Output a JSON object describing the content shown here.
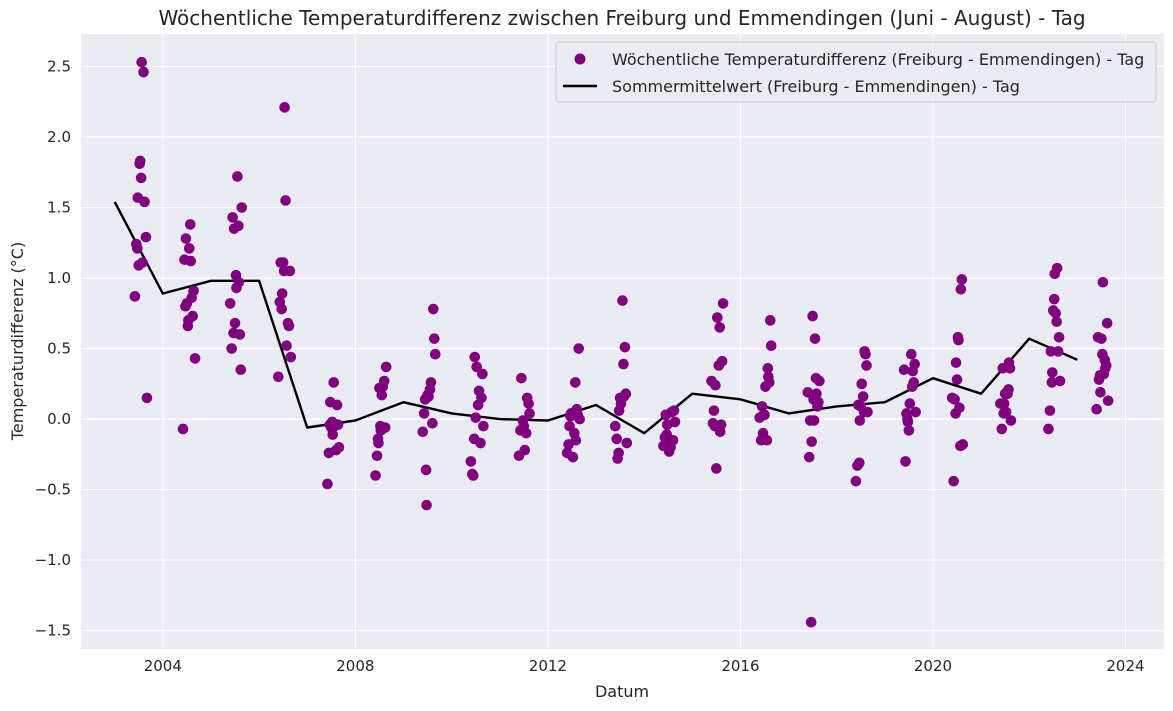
{
  "chart_data": {
    "type": "scatter",
    "title": "Wöchentliche Temperaturdifferenz zwischen Freiburg und Emmendingen (Juni - August) - Tag",
    "xlabel": "Datum",
    "ylabel": "Temperaturdifferenz (°C)",
    "xlim": [
      2002.3,
      2024.8
    ],
    "ylim": [
      -1.63,
      2.73
    ],
    "x_ticks": [
      2004,
      2008,
      2012,
      2016,
      2020,
      2024
    ],
    "y_ticks": [
      -1.5,
      -1.0,
      -0.5,
      0.0,
      0.5,
      1.0,
      1.5,
      2.0,
      2.5
    ],
    "y_tick_labels": [
      "−1.5",
      "−1.0",
      "−0.5",
      "0.0",
      "0.5",
      "1.0",
      "1.5",
      "2.0",
      "2.5"
    ],
    "grid": true,
    "legend_position": "top-right",
    "colors": {
      "background": "#eaeaf2",
      "scatter": "#800080",
      "line": "#000000"
    },
    "series": [
      {
        "name": "Wöchentliche Temperaturdifferenz (Freiburg - Emmendingen) - Tag",
        "type": "scatter",
        "points": [
          [
            2003.42,
            0.87
          ],
          [
            2003.45,
            1.24
          ],
          [
            2003.47,
            1.21
          ],
          [
            2003.48,
            1.57
          ],
          [
            2003.5,
            1.09
          ],
          [
            2003.52,
            1.81
          ],
          [
            2003.53,
            1.83
          ],
          [
            2003.55,
            1.71
          ],
          [
            2003.56,
            2.53
          ],
          [
            2003.58,
            1.11
          ],
          [
            2003.6,
            2.46
          ],
          [
            2003.62,
            1.54
          ],
          [
            2003.65,
            1.29
          ],
          [
            2003.67,
            0.15
          ],
          [
            2004.42,
            -0.07
          ],
          [
            2004.45,
            1.13
          ],
          [
            2004.47,
            0.8
          ],
          [
            2004.48,
            1.28
          ],
          [
            2004.5,
            0.82
          ],
          [
            2004.52,
            0.66
          ],
          [
            2004.53,
            0.7
          ],
          [
            2004.55,
            1.21
          ],
          [
            2004.57,
            1.38
          ],
          [
            2004.58,
            1.12
          ],
          [
            2004.6,
            0.86
          ],
          [
            2004.62,
            0.73
          ],
          [
            2004.64,
            0.91
          ],
          [
            2004.67,
            0.43
          ],
          [
            2005.4,
            0.82
          ],
          [
            2005.43,
            0.5
          ],
          [
            2005.45,
            1.43
          ],
          [
            2005.47,
            0.61
          ],
          [
            2005.48,
            1.35
          ],
          [
            2005.5,
            0.68
          ],
          [
            2005.52,
            1.02
          ],
          [
            2005.53,
            0.93
          ],
          [
            2005.55,
            1.72
          ],
          [
            2005.57,
            1.37
          ],
          [
            2005.58,
            0.97
          ],
          [
            2005.6,
            0.6
          ],
          [
            2005.62,
            0.35
          ],
          [
            2005.64,
            1.5
          ],
          [
            2006.4,
            0.3
          ],
          [
            2006.43,
            0.83
          ],
          [
            2006.45,
            1.11
          ],
          [
            2006.47,
            0.78
          ],
          [
            2006.48,
            0.89
          ],
          [
            2006.5,
            1.11
          ],
          [
            2006.52,
            1.05
          ],
          [
            2006.53,
            2.21
          ],
          [
            2006.55,
            1.55
          ],
          [
            2006.57,
            0.52
          ],
          [
            2006.6,
            0.68
          ],
          [
            2006.62,
            0.66
          ],
          [
            2006.64,
            1.05
          ],
          [
            2006.66,
            0.44
          ],
          [
            2007.42,
            -0.46
          ],
          [
            2007.45,
            -0.24
          ],
          [
            2007.47,
            -0.04
          ],
          [
            2007.48,
            0.12
          ],
          [
            2007.5,
            -0.06
          ],
          [
            2007.52,
            -0.02
          ],
          [
            2007.53,
            -0.11
          ],
          [
            2007.55,
            0.26
          ],
          [
            2007.57,
            -0.05
          ],
          [
            2007.6,
            -0.22
          ],
          [
            2007.62,
            0.1
          ],
          [
            2007.64,
            -0.04
          ],
          [
            2007.66,
            -0.2
          ],
          [
            2008.42,
            -0.4
          ],
          [
            2008.45,
            -0.26
          ],
          [
            2008.47,
            -0.14
          ],
          [
            2008.48,
            -0.17
          ],
          [
            2008.5,
            0.22
          ],
          [
            2008.52,
            -0.05
          ],
          [
            2008.53,
            -0.08
          ],
          [
            2008.55,
            0.17
          ],
          [
            2008.57,
            0.23
          ],
          [
            2008.6,
            0.27
          ],
          [
            2008.62,
            -0.06
          ],
          [
            2008.64,
            0.37
          ],
          [
            2009.4,
            -0.09
          ],
          [
            2009.43,
            0.04
          ],
          [
            2009.45,
            0.14
          ],
          [
            2009.47,
            -0.36
          ],
          [
            2009.48,
            -0.61
          ],
          [
            2009.5,
            0.17
          ],
          [
            2009.52,
            0.16
          ],
          [
            2009.55,
            0.21
          ],
          [
            2009.57,
            0.26
          ],
          [
            2009.6,
            -0.03
          ],
          [
            2009.62,
            0.78
          ],
          [
            2009.64,
            0.57
          ],
          [
            2009.66,
            0.46
          ],
          [
            2010.4,
            -0.3
          ],
          [
            2010.43,
            -0.39
          ],
          [
            2010.45,
            -0.4
          ],
          [
            2010.47,
            -0.14
          ],
          [
            2010.48,
            0.44
          ],
          [
            2010.5,
            0.01
          ],
          [
            2010.52,
            0.37
          ],
          [
            2010.55,
            0.1
          ],
          [
            2010.57,
            0.2
          ],
          [
            2010.6,
            -0.17
          ],
          [
            2010.62,
            0.15
          ],
          [
            2010.64,
            0.32
          ],
          [
            2010.66,
            -0.05
          ],
          [
            2011.4,
            -0.26
          ],
          [
            2011.43,
            -0.08
          ],
          [
            2011.45,
            0.29
          ],
          [
            2011.47,
            -0.08
          ],
          [
            2011.48,
            -0.01
          ],
          [
            2011.5,
            -0.05
          ],
          [
            2011.52,
            -0.22
          ],
          [
            2011.55,
            -0.1
          ],
          [
            2011.57,
            0.15
          ],
          [
            2011.6,
            0.11
          ],
          [
            2011.62,
            0.04
          ],
          [
            2012.4,
            -0.24
          ],
          [
            2012.43,
            -0.18
          ],
          [
            2012.45,
            -0.05
          ],
          [
            2012.47,
            0.02
          ],
          [
            2012.48,
            0.04
          ],
          [
            2012.5,
            0.03
          ],
          [
            2012.52,
            -0.27
          ],
          [
            2012.55,
            -0.1
          ],
          [
            2012.57,
            0.26
          ],
          [
            2012.58,
            -0.15
          ],
          [
            2012.6,
            0.07
          ],
          [
            2012.62,
            0.03
          ],
          [
            2012.64,
            0.5
          ],
          [
            2012.66,
            0.0
          ],
          [
            2013.4,
            -0.05
          ],
          [
            2013.43,
            -0.14
          ],
          [
            2013.45,
            -0.28
          ],
          [
            2013.47,
            -0.24
          ],
          [
            2013.48,
            0.06
          ],
          [
            2013.5,
            0.15
          ],
          [
            2013.52,
            0.11
          ],
          [
            2013.55,
            0.84
          ],
          [
            2013.57,
            0.39
          ],
          [
            2013.58,
            0.16
          ],
          [
            2013.6,
            0.51
          ],
          [
            2013.62,
            0.18
          ],
          [
            2013.64,
            -0.17
          ],
          [
            2014.4,
            -0.19
          ],
          [
            2014.43,
            -0.13
          ],
          [
            2014.45,
            0.03
          ],
          [
            2014.47,
            -0.11
          ],
          [
            2014.48,
            -0.04
          ],
          [
            2014.5,
            -0.17
          ],
          [
            2014.52,
            -0.23
          ],
          [
            2014.55,
            -0.2
          ],
          [
            2014.57,
            0.05
          ],
          [
            2014.6,
            -0.15
          ],
          [
            2014.62,
            0.06
          ],
          [
            2014.64,
            -0.02
          ],
          [
            2015.4,
            0.27
          ],
          [
            2015.43,
            -0.03
          ],
          [
            2015.45,
            0.06
          ],
          [
            2015.47,
            -0.05
          ],
          [
            2015.48,
            0.24
          ],
          [
            2015.5,
            -0.35
          ],
          [
            2015.52,
            0.72
          ],
          [
            2015.55,
            0.38
          ],
          [
            2015.57,
            0.65
          ],
          [
            2015.58,
            -0.09
          ],
          [
            2015.6,
            -0.04
          ],
          [
            2015.62,
            0.41
          ],
          [
            2015.64,
            0.82
          ],
          [
            2016.4,
            0.01
          ],
          [
            2016.43,
            -0.15
          ],
          [
            2016.45,
            0.09
          ],
          [
            2016.47,
            -0.1
          ],
          [
            2016.48,
            0.03
          ],
          [
            2016.5,
            0.03
          ],
          [
            2016.52,
            0.23
          ],
          [
            2016.55,
            -0.15
          ],
          [
            2016.57,
            0.36
          ],
          [
            2016.58,
            0.3
          ],
          [
            2016.6,
            0.26
          ],
          [
            2016.62,
            0.7
          ],
          [
            2016.64,
            0.52
          ],
          [
            2017.4,
            0.19
          ],
          [
            2017.43,
            -0.27
          ],
          [
            2017.45,
            -0.01
          ],
          [
            2017.47,
            -1.44
          ],
          [
            2017.48,
            -0.16
          ],
          [
            2017.5,
            0.73
          ],
          [
            2017.52,
            0.14
          ],
          [
            2017.53,
            -0.01
          ],
          [
            2017.55,
            0.57
          ],
          [
            2017.57,
            0.29
          ],
          [
            2017.58,
            0.18
          ],
          [
            2017.6,
            0.09
          ],
          [
            2017.62,
            0.12
          ],
          [
            2017.64,
            0.27
          ],
          [
            2018.4,
            -0.44
          ],
          [
            2018.43,
            -0.33
          ],
          [
            2018.45,
            0.1
          ],
          [
            2018.47,
            -0.31
          ],
          [
            2018.48,
            -0.01
          ],
          [
            2018.5,
            0.09
          ],
          [
            2018.52,
            0.25
          ],
          [
            2018.55,
            0.16
          ],
          [
            2018.57,
            0.05
          ],
          [
            2018.58,
            0.48
          ],
          [
            2018.6,
            0.46
          ],
          [
            2018.62,
            0.38
          ],
          [
            2018.64,
            0.05
          ],
          [
            2019.4,
            0.35
          ],
          [
            2019.43,
            -0.3
          ],
          [
            2019.45,
            0.04
          ],
          [
            2019.47,
            0.0
          ],
          [
            2019.48,
            -0.02
          ],
          [
            2019.5,
            -0.08
          ],
          [
            2019.52,
            0.11
          ],
          [
            2019.55,
            0.46
          ],
          [
            2019.57,
            0.23
          ],
          [
            2019.58,
            0.34
          ],
          [
            2019.6,
            0.26
          ],
          [
            2019.62,
            0.39
          ],
          [
            2019.64,
            0.05
          ],
          [
            2020.4,
            0.15
          ],
          [
            2020.43,
            -0.44
          ],
          [
            2020.45,
            0.14
          ],
          [
            2020.47,
            0.04
          ],
          [
            2020.48,
            0.4
          ],
          [
            2020.5,
            0.28
          ],
          [
            2020.52,
            0.58
          ],
          [
            2020.53,
            0.56
          ],
          [
            2020.55,
            0.08
          ],
          [
            2020.57,
            -0.19
          ],
          [
            2020.58,
            0.92
          ],
          [
            2020.6,
            0.99
          ],
          [
            2020.62,
            -0.18
          ],
          [
            2021.4,
            0.11
          ],
          [
            2021.43,
            -0.07
          ],
          [
            2021.45,
            0.36
          ],
          [
            2021.47,
            0.04
          ],
          [
            2021.48,
            0.11
          ],
          [
            2021.5,
            0.18
          ],
          [
            2021.52,
            0.05
          ],
          [
            2021.55,
            0.18
          ],
          [
            2021.57,
            0.21
          ],
          [
            2021.58,
            0.4
          ],
          [
            2021.6,
            0.36
          ],
          [
            2021.62,
            -0.01
          ],
          [
            2022.4,
            -0.07
          ],
          [
            2022.43,
            0.06
          ],
          [
            2022.45,
            0.48
          ],
          [
            2022.47,
            0.26
          ],
          [
            2022.48,
            0.33
          ],
          [
            2022.5,
            0.77
          ],
          [
            2022.52,
            0.85
          ],
          [
            2022.53,
            1.03
          ],
          [
            2022.55,
            0.75
          ],
          [
            2022.57,
            0.69
          ],
          [
            2022.58,
            1.07
          ],
          [
            2022.6,
            0.48
          ],
          [
            2022.62,
            0.58
          ],
          [
            2022.64,
            0.27
          ],
          [
            2023.4,
            0.07
          ],
          [
            2023.43,
            0.58
          ],
          [
            2023.45,
            0.28
          ],
          [
            2023.47,
            0.31
          ],
          [
            2023.48,
            0.19
          ],
          [
            2023.5,
            0.57
          ],
          [
            2023.52,
            0.46
          ],
          [
            2023.53,
            0.97
          ],
          [
            2023.55,
            0.32
          ],
          [
            2023.57,
            0.42
          ],
          [
            2023.58,
            0.36
          ],
          [
            2023.6,
            0.38
          ],
          [
            2023.62,
            0.68
          ],
          [
            2023.64,
            0.13
          ]
        ]
      },
      {
        "name": "Sommermittelwert (Freiburg - Emmendingen) - Tag",
        "type": "line",
        "points": [
          [
            2003.0,
            1.54
          ],
          [
            2004.0,
            0.89
          ],
          [
            2005.0,
            0.98
          ],
          [
            2006.0,
            0.98
          ],
          [
            2007.0,
            -0.06
          ],
          [
            2008.0,
            -0.01
          ],
          [
            2009.0,
            0.12
          ],
          [
            2010.0,
            0.04
          ],
          [
            2011.0,
            0.0
          ],
          [
            2012.0,
            -0.01
          ],
          [
            2013.0,
            0.1
          ],
          [
            2014.0,
            -0.1
          ],
          [
            2015.0,
            0.18
          ],
          [
            2016.0,
            0.14
          ],
          [
            2017.0,
            0.04
          ],
          [
            2018.0,
            0.09
          ],
          [
            2019.0,
            0.12
          ],
          [
            2020.0,
            0.29
          ],
          [
            2021.0,
            0.18
          ],
          [
            2022.0,
            0.57
          ],
          [
            2023.0,
            0.42
          ]
        ]
      }
    ]
  }
}
